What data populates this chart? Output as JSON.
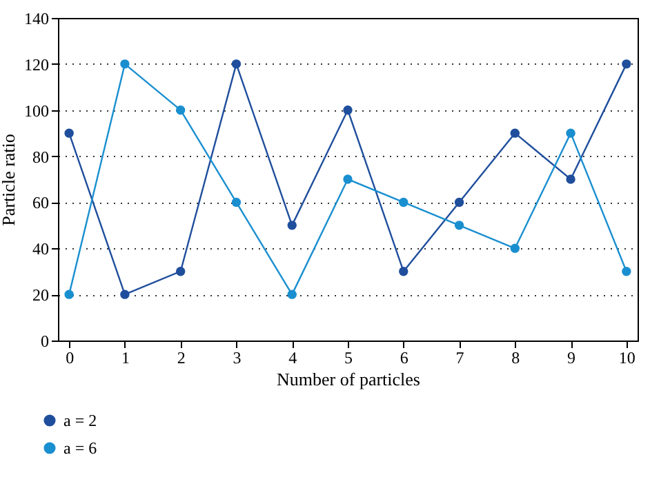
{
  "chart_data": {
    "type": "line",
    "xlabel": "Number of particles",
    "ylabel": "Particle ratio",
    "x": [
      0,
      1,
      2,
      3,
      4,
      5,
      6,
      7,
      8,
      9,
      10
    ],
    "xlim": [
      -0.2,
      10.2
    ],
    "xticks": [
      0,
      1,
      2,
      3,
      4,
      5,
      6,
      7,
      8,
      9,
      10
    ],
    "ylim": [
      0,
      140
    ],
    "yticks": [
      0,
      20,
      40,
      60,
      80,
      100,
      120,
      140
    ],
    "grid": "y",
    "legend": "bottom left",
    "marker": "circle",
    "line_style": "solid",
    "series": [
      {
        "name": "a = 2",
        "color": "#1f4e9c",
        "values": [
          90,
          20,
          30,
          120,
          50,
          100,
          30,
          60,
          90,
          70,
          120
        ]
      },
      {
        "name": "a = 6",
        "color": "#1a8fd0",
        "values": [
          20,
          120,
          100,
          60,
          20,
          70,
          60,
          50,
          40,
          90,
          30
        ]
      }
    ]
  }
}
